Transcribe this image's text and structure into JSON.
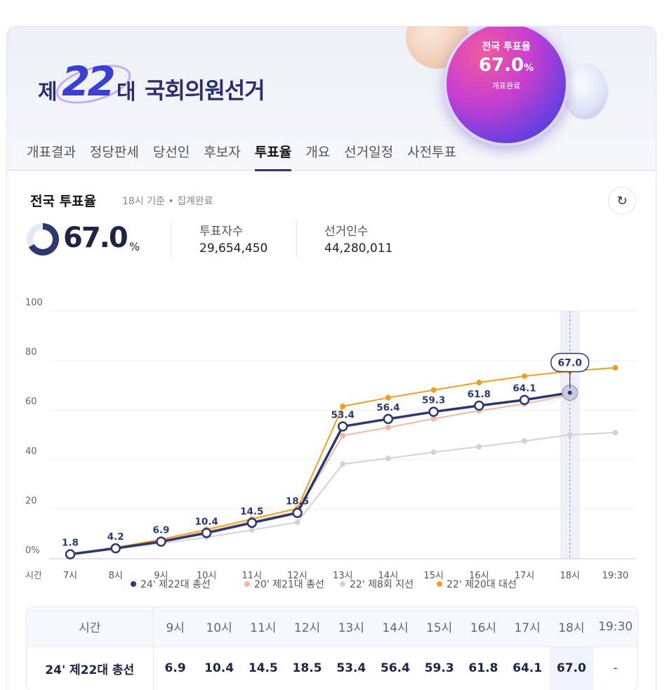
{
  "banner": {
    "logo_je": "제",
    "logo_num": "22",
    "logo_dae": "대",
    "logo_name": "국회의원선거",
    "orb_title": "전국 투표율",
    "orb_rate": "67.0",
    "orb_unit": "%",
    "orb_status": "개표완료"
  },
  "tabs": [
    "개표결과",
    "정당판세",
    "당선인",
    "후보자",
    "투표율",
    "개요",
    "선거일정",
    "사전투표"
  ],
  "active_tab": "투표율",
  "section": {
    "title": "전국 투표율",
    "subtitle": "18시 기준 • 집계완료",
    "rate": "67.0",
    "rate_unit": "%",
    "rate_fraction": 0.67,
    "voters_label": "투표자수",
    "voters_value": "29,654,450",
    "electors_label": "선거인수",
    "electors_value": "44,280,011"
  },
  "chart_data": {
    "type": "line",
    "xlabel": "시간",
    "categories": [
      "7시",
      "8시",
      "9시",
      "10시",
      "11시",
      "12시",
      "13시",
      "14시",
      "15시",
      "16시",
      "17시",
      "18시",
      "19:30"
    ],
    "y_ticks": [
      "0%",
      "20",
      "40",
      "60",
      "80",
      "100"
    ],
    "ylim": [
      0,
      100
    ],
    "grid": true,
    "legend_position": "bottom",
    "highlight_category": "18시",
    "callout": "67.0",
    "series": [
      {
        "name": "24' 제22대 총선",
        "color": "#2d3870",
        "labeled": true,
        "values": [
          1.8,
          4.2,
          6.9,
          10.4,
          14.5,
          18.5,
          53.4,
          56.4,
          59.3,
          61.8,
          64.1,
          67.0,
          null
        ]
      },
      {
        "name": "20' 제21대 총선",
        "color": "#f4b6a6",
        "labeled": false,
        "values": [
          2.0,
          4.7,
          7.3,
          11.0,
          15.0,
          19.0,
          49.7,
          53.0,
          56.5,
          59.7,
          62.5,
          66.2,
          null
        ]
      },
      {
        "name": "22' 제8회 지선",
        "color": "#d3d3d3",
        "labeled": false,
        "values": [
          2.1,
          4.0,
          6.2,
          8.6,
          11.6,
          14.7,
          38.2,
          40.5,
          43.0,
          45.2,
          47.5,
          50.0,
          50.9
        ]
      },
      {
        "name": "22' 제20대 대선",
        "color": "#f0a020",
        "labeled": false,
        "values": [
          1.7,
          4.5,
          7.8,
          11.8,
          16.0,
          20.3,
          61.5,
          65.0,
          68.1,
          71.1,
          73.7,
          75.7,
          77.1
        ]
      }
    ]
  },
  "table": {
    "header_label": "시간",
    "times": [
      "9시",
      "10시",
      "11시",
      "12시",
      "13시",
      "14시",
      "15시",
      "16시",
      "17시",
      "18시",
      "19:30"
    ],
    "row_label": "24' 제22대 총선",
    "row_values": [
      "6.9",
      "10.4",
      "14.5",
      "18.5",
      "53.4",
      "56.4",
      "59.3",
      "61.8",
      "64.1",
      "67.0",
      "-"
    ]
  }
}
